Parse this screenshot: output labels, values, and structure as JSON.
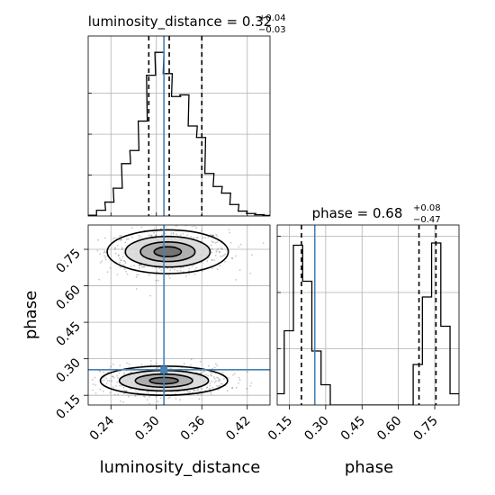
{
  "chart_data": [
    {
      "type": "histogram",
      "panel": "marginal-luminosity_distance",
      "title_param": "luminosity_distance",
      "title_value": "0.32",
      "title_plus": "+0.04",
      "title_minus": "−0.03",
      "x": [
        0.215,
        0.227,
        0.238,
        0.249,
        0.26,
        0.271,
        0.282,
        0.293,
        0.304,
        0.315,
        0.326,
        0.337,
        0.348,
        0.359,
        0.37,
        0.381,
        0.392,
        0.403,
        0.414,
        0.425,
        0.436,
        0.447
      ],
      "values": [
        0.005,
        0.035,
        0.085,
        0.17,
        0.32,
        0.4,
        0.58,
        0.86,
        1.0,
        0.87,
        0.73,
        0.74,
        0.55,
        0.48,
        0.26,
        0.18,
        0.14,
        0.07,
        0.03,
        0.015,
        0.008,
        0.003
      ],
      "quantiles": [
        0.29,
        0.317,
        0.36
      ],
      "truth": 0.31,
      "xlim": [
        0.21,
        0.45
      ],
      "grid": true
    },
    {
      "type": "histogram",
      "panel": "marginal-phase",
      "title_param": "phase",
      "title_value": "0.68",
      "title_plus": "+0.08",
      "title_minus": "−0.47",
      "x": [
        0.11,
        0.148,
        0.186,
        0.224,
        0.262,
        0.3,
        0.338,
        0.376,
        0.414,
        0.452,
        0.49,
        0.528,
        0.566,
        0.604,
        0.642,
        0.68,
        0.718,
        0.756,
        0.794,
        0.832
      ],
      "values": [
        0.05,
        0.33,
        0.71,
        0.55,
        0.24,
        0.09,
        0.0,
        0.0,
        0.0,
        0.0,
        0.0,
        0.0,
        0.0,
        0.0,
        0.0,
        0.18,
        0.48,
        0.72,
        0.35,
        0.05
      ],
      "quantiles": [
        0.2,
        0.685,
        0.755
      ],
      "truth": 0.255,
      "xlabel": "phase",
      "xticks": [
        "0.15",
        "0.30",
        "0.45",
        "0.60",
        "0.75"
      ],
      "xlim": [
        0.1,
        0.85
      ],
      "grid": true
    },
    {
      "type": "scatter",
      "panel": "joint",
      "xlabel": "luminosity_distance",
      "ylabel": "phase",
      "xticks": [
        "0.24",
        "0.30",
        "0.36",
        "0.42"
      ],
      "yticks": [
        "0.15",
        "0.30",
        "0.45",
        "0.60",
        "0.75"
      ],
      "xlim": [
        0.21,
        0.45
      ],
      "ylim": [
        0.11,
        0.85
      ],
      "clusters": [
        {
          "center": [
            0.315,
            0.74
          ],
          "spread": [
            0.04,
            0.045
          ]
        },
        {
          "center": [
            0.31,
            0.21
          ],
          "spread": [
            0.042,
            0.03
          ]
        }
      ],
      "truth": [
        0.31,
        0.255
      ],
      "grid": true
    }
  ]
}
